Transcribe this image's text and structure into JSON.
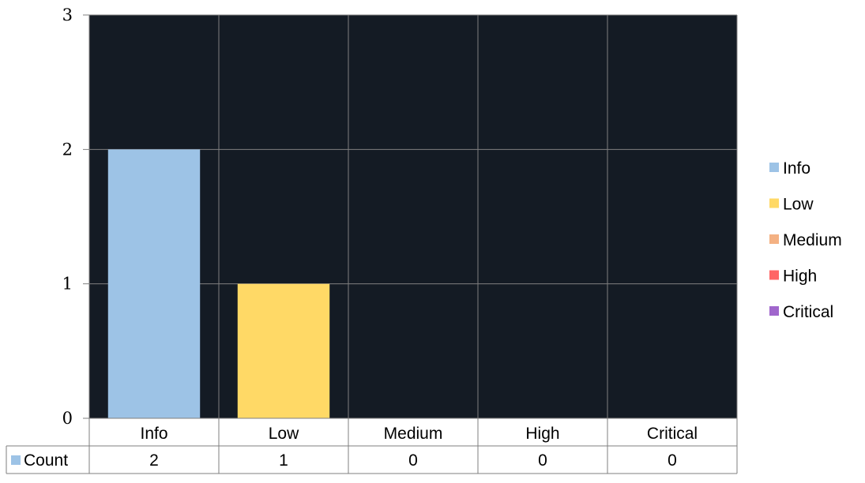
{
  "chart_data": {
    "type": "bar",
    "categories": [
      "Info",
      "Low",
      "Medium",
      "High",
      "Critical"
    ],
    "series": [
      {
        "name": "Count",
        "values": [
          2,
          1,
          0,
          0,
          0
        ]
      }
    ],
    "ylim": [
      0,
      3
    ],
    "yticks": [
      "0",
      "1",
      "2",
      "3"
    ],
    "grid": true,
    "plot_background": "#141b24",
    "grid_color": "#7f7f7f",
    "category_colors": [
      "#9dc3e6",
      "#ffd966",
      "#f4b183",
      "#ff6666",
      "#a066cc"
    ],
    "legend": {
      "placement": "right",
      "entries": [
        "Info",
        "Low",
        "Medium",
        "High",
        "Critical"
      ]
    },
    "data_table": {
      "row_label": "Count",
      "row_marker_color": "#9dc3e6",
      "values": [
        "2",
        "1",
        "0",
        "0",
        "0"
      ]
    }
  }
}
